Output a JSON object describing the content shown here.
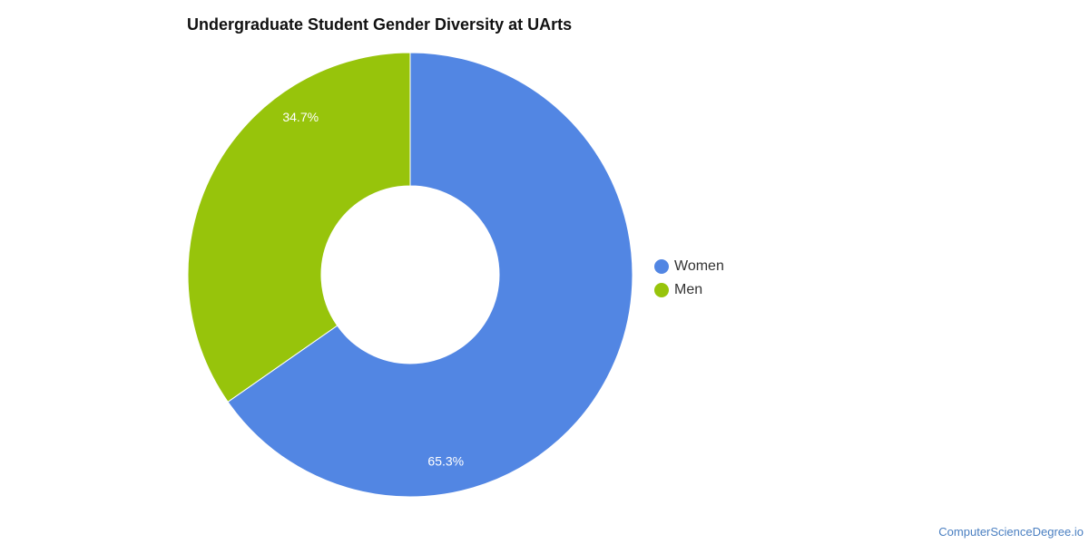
{
  "chart_data": {
    "type": "pie",
    "variant": "donut",
    "title": "Undergraduate Student Gender Diversity at UArts",
    "categories": [
      "Women",
      "Men"
    ],
    "values": [
      65.3,
      34.7
    ],
    "labels": [
      "65.3%",
      "34.7%"
    ],
    "colors": [
      "#5286e3",
      "#97c40b"
    ],
    "legend_position": "right"
  },
  "footer": {
    "source": "ComputerScienceDegree.io"
  }
}
